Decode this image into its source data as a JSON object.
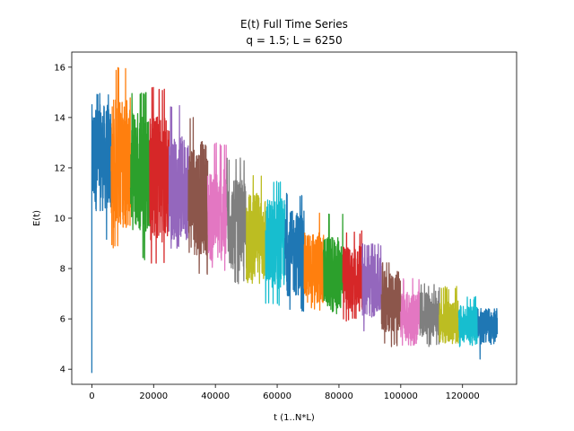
{
  "chart_data": {
    "type": "line",
    "title": "E(t) Full Time Series",
    "subtitle": "q = 1.5; L = 6250",
    "xlabel": "t (1..N*L)",
    "ylabel": "E(t)",
    "xlim": [
      -6500,
      137500
    ],
    "ylim": [
      3.4,
      16.6
    ],
    "xticks": [
      0,
      20000,
      40000,
      60000,
      80000,
      100000,
      120000
    ],
    "xtick_labels": [
      "0",
      "20000",
      "40000",
      "60000",
      "80000",
      "100000",
      "120000"
    ],
    "yticks": [
      4,
      6,
      8,
      10,
      12,
      14,
      16
    ],
    "ytick_labels": [
      "4",
      "6",
      "8",
      "10",
      "12",
      "14",
      "16"
    ],
    "grid": false,
    "legend": "none",
    "colors": [
      "#1f77b4",
      "#ff7f0e",
      "#2ca02c",
      "#d62728",
      "#9467bd",
      "#8c564b",
      "#e377c2",
      "#7f7f7f",
      "#bcbd22",
      "#17becf"
    ],
    "segment_length": 6250,
    "initial_value": 3.85,
    "series": [
      {
        "x_start": 0,
        "x_end": 6250,
        "mean": 12.4,
        "min": 9.1,
        "max": 15.0
      },
      {
        "x_start": 6250,
        "x_end": 12500,
        "mean": 12.2,
        "min": 8.8,
        "max": 16.0
      },
      {
        "x_start": 12500,
        "x_end": 18750,
        "mean": 11.9,
        "min": 8.3,
        "max": 15.0
      },
      {
        "x_start": 18750,
        "x_end": 25000,
        "mean": 11.6,
        "min": 8.1,
        "max": 15.2
      },
      {
        "x_start": 25000,
        "x_end": 31250,
        "mean": 11.2,
        "min": 8.8,
        "max": 14.5
      },
      {
        "x_start": 31250,
        "x_end": 37500,
        "mean": 10.8,
        "min": 7.7,
        "max": 14.0
      },
      {
        "x_start": 37500,
        "x_end": 43750,
        "mean": 10.1,
        "min": 7.9,
        "max": 13.0
      },
      {
        "x_start": 43750,
        "x_end": 50000,
        "mean": 9.7,
        "min": 7.4,
        "max": 12.4
      },
      {
        "x_start": 50000,
        "x_end": 56250,
        "mean": 9.2,
        "min": 6.8,
        "max": 11.8
      },
      {
        "x_start": 56250,
        "x_end": 62500,
        "mean": 9.0,
        "min": 6.5,
        "max": 11.5
      },
      {
        "x_start": 62500,
        "x_end": 68750,
        "mean": 8.6,
        "min": 6.3,
        "max": 11.0
      },
      {
        "x_start": 68750,
        "x_end": 75000,
        "mean": 8.0,
        "min": 6.3,
        "max": 10.3
      },
      {
        "x_start": 75000,
        "x_end": 81250,
        "mean": 7.8,
        "min": 6.2,
        "max": 10.2
      },
      {
        "x_start": 81250,
        "x_end": 87500,
        "mean": 7.6,
        "min": 5.9,
        "max": 9.5
      },
      {
        "x_start": 87500,
        "x_end": 93750,
        "mean": 7.3,
        "min": 5.5,
        "max": 9.0
      },
      {
        "x_start": 93750,
        "x_end": 100000,
        "mean": 6.7,
        "min": 4.9,
        "max": 8.3
      },
      {
        "x_start": 100000,
        "x_end": 106250,
        "mean": 6.1,
        "min": 4.9,
        "max": 7.6
      },
      {
        "x_start": 106250,
        "x_end": 112500,
        "mean": 6.2,
        "min": 4.9,
        "max": 7.4
      },
      {
        "x_start": 112500,
        "x_end": 118750,
        "mean": 5.9,
        "min": 5.0,
        "max": 7.3
      },
      {
        "x_start": 118750,
        "x_end": 125000,
        "mean": 5.8,
        "min": 4.9,
        "max": 6.9
      },
      {
        "x_start": 125000,
        "x_end": 131250,
        "mean": 5.7,
        "min": 4.3,
        "max": 6.3
      }
    ]
  }
}
